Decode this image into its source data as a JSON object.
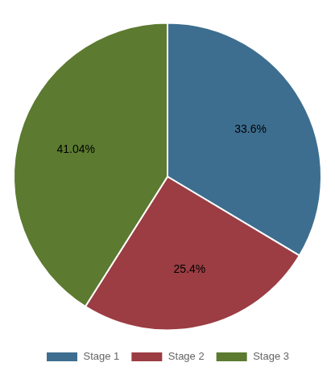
{
  "chart_data": {
    "type": "pie",
    "categories": [
      "Stage 1",
      "Stage 2",
      "Stage 3"
    ],
    "values": [
      33.6,
      25.4,
      41.04
    ],
    "value_labels": [
      "33.6%",
      "25.4%",
      "41.04%"
    ],
    "colors": [
      "#3d6e8f",
      "#9b3d43",
      "#5c7a30"
    ],
    "data_labels": true,
    "legend": "bottom"
  }
}
